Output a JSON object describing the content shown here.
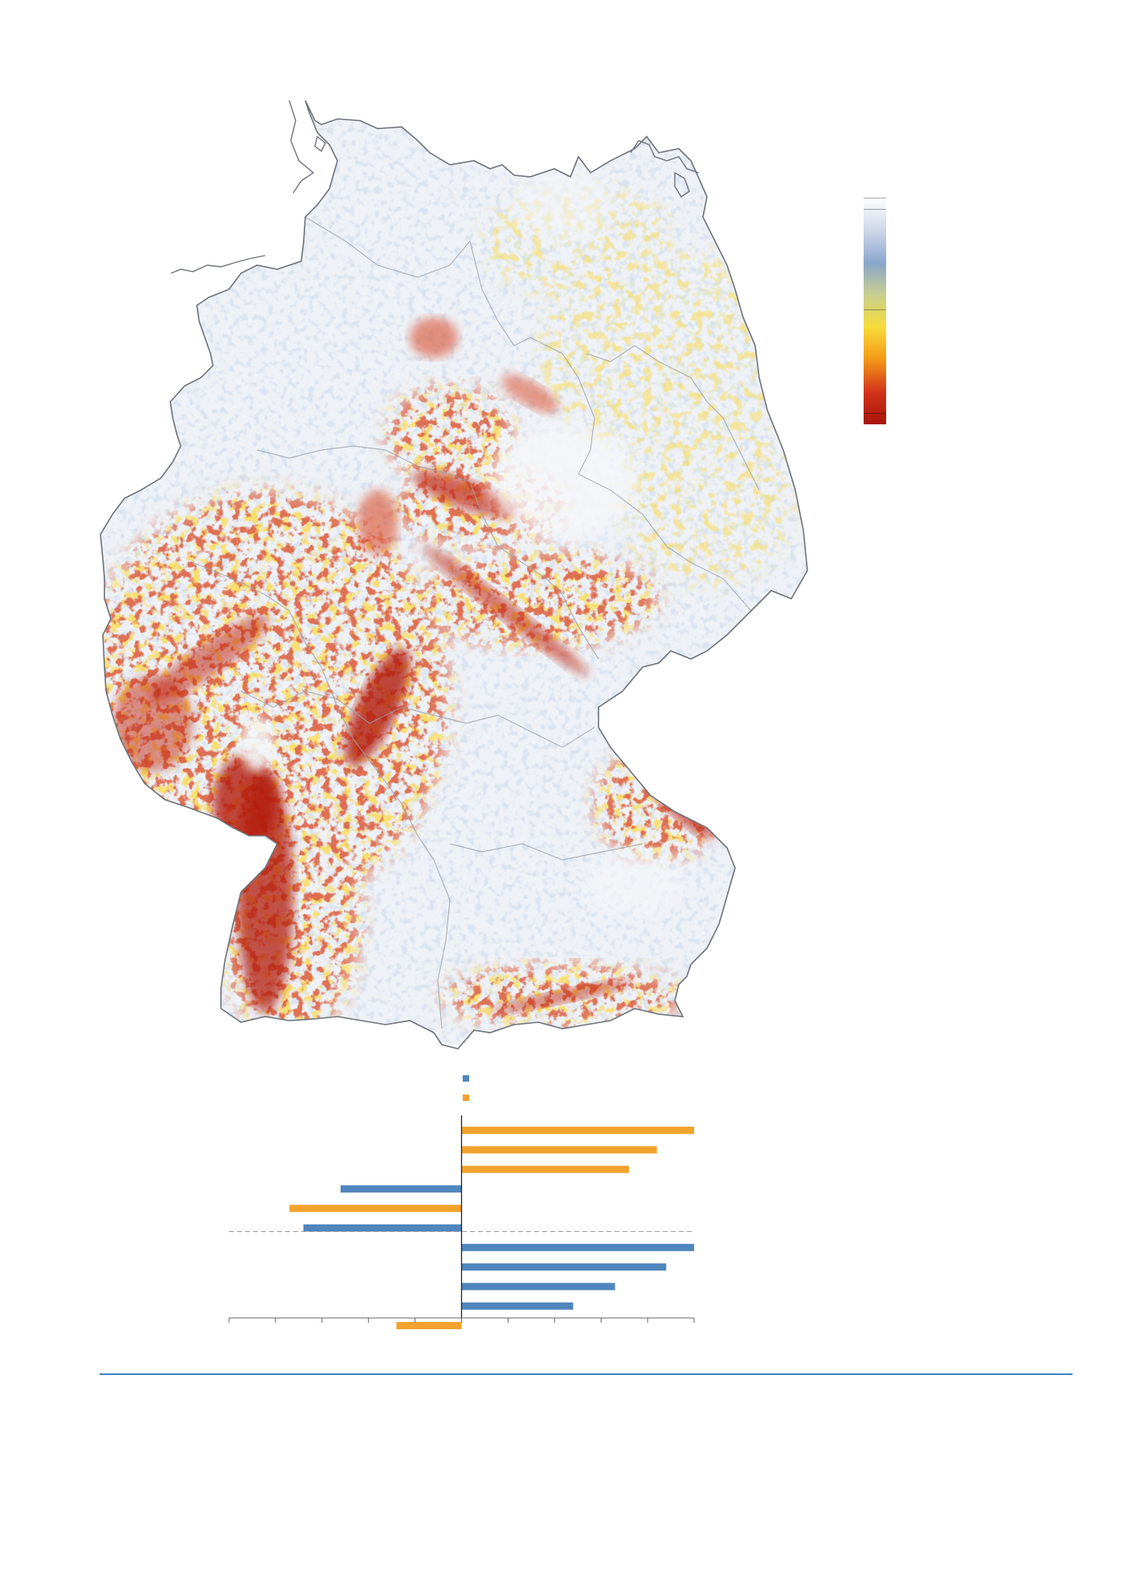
{
  "colors": {
    "background": "#ffffff",
    "land_base": "#e9edf4",
    "border": "#888888",
    "coast": "#666666",
    "series_blue": "#4f86bd",
    "series_orange": "#f2a32e",
    "divider": "#3b82c4",
    "zero_line": "#222222",
    "hot_dark": "#b31d10",
    "hot": "#d8401a",
    "warm": "#f4b51c",
    "mild": "#c9d79a",
    "cool": "#9fb4d6"
  },
  "legend": {
    "gradient_stops": [
      "#ffffff",
      "#cfd8ea",
      "#8aa6cc",
      "#c9cf8f",
      "#f7dc3a",
      "#f59a16",
      "#d2321a",
      "#a8150c"
    ]
  },
  "chart_data": {
    "type": "bar",
    "orientation": "horizontal",
    "series": [
      {
        "color": "#4f86bd",
        "values": [
          0,
          0,
          0,
          -2.6,
          0,
          -3.4,
          5.0,
          4.4,
          3.3,
          2.4,
          0
        ]
      },
      {
        "color": "#f2a32e",
        "values": [
          5.0,
          4.2,
          3.6,
          0,
          -3.7,
          0,
          0,
          0,
          0,
          0,
          -1.4
        ]
      }
    ],
    "xlim": [
      -5,
      5
    ],
    "x_ticks": [
      -5,
      -4,
      -3,
      -2,
      -1,
      0,
      1,
      2,
      3,
      4,
      5
    ],
    "reference_line_after_row": 5,
    "grid": false
  }
}
